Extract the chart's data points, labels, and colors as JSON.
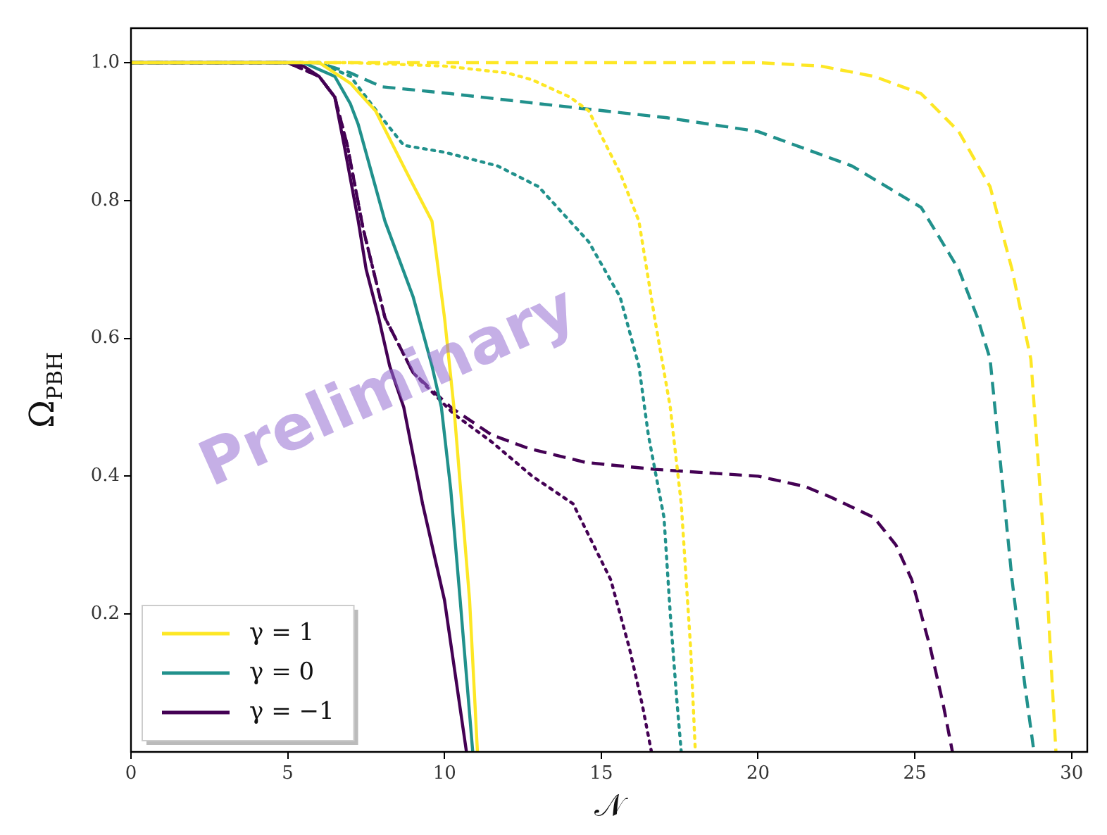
{
  "chart_data": {
    "type": "line",
    "xlabel": "𝒩",
    "ylabel": "Ω$_{PBH}$",
    "xlim": [
      0,
      30.5
    ],
    "ylim": [
      0,
      1.05
    ],
    "xticks": [
      0,
      5,
      10,
      15,
      20,
      25,
      30
    ],
    "yticks": [
      0.2,
      0.4,
      0.6,
      0.8,
      {
        "value": 1,
        "label": "1.0"
      }
    ],
    "grid": false,
    "legend": "bottom left",
    "marker": "none",
    "annotations": [
      "Preliminary"
    ],
    "series": [
      {
        "name": "γ = 1",
        "color": "#fde725",
        "line_style": "solid",
        "x": [
          0,
          6,
          7,
          7.8,
          8.8,
          9.6,
          10,
          10.3,
          10.8,
          11.05
        ],
        "values": [
          1,
          1,
          0.97,
          0.93,
          0.84,
          0.77,
          0.63,
          0.5,
          0.22,
          0
        ]
      },
      {
        "name": "γ = 0",
        "color": "#21918c",
        "line_style": "solid",
        "x": [
          0,
          5.5,
          6.5,
          7,
          7.25,
          8.1,
          9,
          9.6,
          9.9,
          10.2,
          10.5,
          10.9
        ],
        "values": [
          1,
          1,
          0.98,
          0.94,
          0.91,
          0.77,
          0.66,
          0.56,
          0.5,
          0.38,
          0.22,
          0
        ]
      },
      {
        "name": "γ = −1",
        "color": "#440154",
        "line_style": "solid",
        "x": [
          0,
          5,
          5.5,
          6,
          6.5,
          6.8,
          7.25,
          7.5,
          7.9,
          8.25,
          8.7,
          9.3,
          10,
          10.7
        ],
        "values": [
          1,
          1,
          0.995,
          0.98,
          0.95,
          0.88,
          0.77,
          0.7,
          0.63,
          0.56,
          0.5,
          0.36,
          0.22,
          0
        ]
      },
      {
        "color": "#fde725",
        "line_style": "dotted",
        "x": [
          0,
          7,
          10,
          12,
          12.8,
          14,
          14.6,
          15.6,
          16.2,
          16.7,
          17.2,
          17.55,
          17.85,
          18
        ],
        "values": [
          1,
          1,
          0.995,
          0.985,
          0.975,
          0.95,
          0.93,
          0.84,
          0.77,
          0.63,
          0.5,
          0.36,
          0.15,
          0
        ]
      },
      {
        "color": "#21918c",
        "line_style": "dotted",
        "x": [
          0,
          6,
          7,
          8,
          8.7,
          10,
          11.7,
          13,
          14.6,
          15.6,
          16.2,
          16.5,
          17,
          17.2,
          17.4,
          17.55
        ],
        "values": [
          1,
          1,
          0.98,
          0.92,
          0.88,
          0.87,
          0.85,
          0.82,
          0.74,
          0.66,
          0.56,
          0.46,
          0.34,
          0.2,
          0.08,
          0
        ]
      },
      {
        "color": "#440154",
        "line_style": "dotted",
        "x": [
          0,
          5,
          6,
          6.5,
          6.9,
          7.4,
          8.1,
          9,
          10.3,
          11.5,
          12.8,
          14.1,
          15.3,
          15.9,
          16.3,
          16.6
        ],
        "values": [
          1,
          1,
          0.98,
          0.95,
          0.88,
          0.76,
          0.63,
          0.55,
          0.49,
          0.45,
          0.4,
          0.36,
          0.25,
          0.15,
          0.07,
          0
        ]
      },
      {
        "color": "#fde725",
        "line_style": "dashed",
        "x": [
          0,
          20,
          22,
          23.7,
          25.2,
          26.4,
          27.4,
          28.1,
          28.7,
          29.2,
          29.5
        ],
        "values": [
          1,
          1,
          0.995,
          0.98,
          0.955,
          0.9,
          0.82,
          0.7,
          0.57,
          0.25,
          0
        ]
      },
      {
        "color": "#21918c",
        "line_style": "dashed",
        "x": [
          0,
          6,
          7,
          8,
          10.2,
          13.1,
          17.1,
          20,
          23,
          25.2,
          26.4,
          27,
          27.4,
          28.1,
          28.5,
          28.8
        ],
        "values": [
          1,
          1,
          0.985,
          0.965,
          0.955,
          0.94,
          0.92,
          0.9,
          0.85,
          0.79,
          0.7,
          0.63,
          0.57,
          0.25,
          0.1,
          0
        ]
      },
      {
        "color": "#440154",
        "line_style": "dashed",
        "x": [
          0,
          5,
          6,
          6.5,
          6.9,
          7.4,
          8.1,
          9,
          10.2,
          11.5,
          12.7,
          14.5,
          16.7,
          20,
          21.5,
          22.3,
          23.7,
          24.4,
          24.9,
          25.5,
          25.9,
          26.2
        ],
        "values": [
          1,
          1,
          0.98,
          0.95,
          0.88,
          0.76,
          0.63,
          0.55,
          0.5,
          0.46,
          0.44,
          0.42,
          0.41,
          0.4,
          0.385,
          0.37,
          0.34,
          0.3,
          0.25,
          0.15,
          0.07,
          0
        ]
      }
    ]
  }
}
